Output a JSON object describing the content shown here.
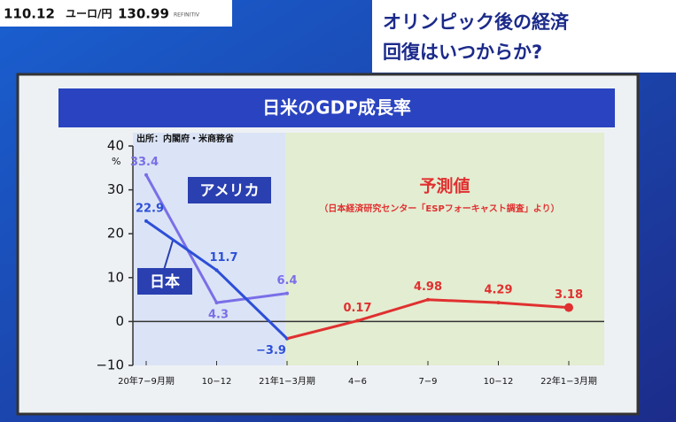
{
  "ticker": {
    "value1": "110.12",
    "pair": "ユーロ/円",
    "value2": "130.99",
    "source": "REFINITIV"
  },
  "headline": {
    "line1": "オリンピック後の経済",
    "line2": "回復はいつからか?"
  },
  "chart_data": {
    "type": "line",
    "title": "日米のGDP成長率",
    "source": "出所：内閣府・米商務省",
    "y_unit": "%",
    "categories": [
      "20年7−9月期",
      "10−12",
      "21年1−3月期",
      "4−6",
      "7−9",
      "10−12",
      "22年1−3月期"
    ],
    "series": [
      {
        "name": "アメリカ",
        "color": "#7a6fe8",
        "values": [
          33.4,
          4.3,
          6.4,
          null,
          null,
          null,
          null
        ],
        "value_labels": [
          "33.4",
          "4.3",
          "6.4",
          null,
          null,
          null,
          null
        ]
      },
      {
        "name": "日本",
        "color": "#2d4fd8",
        "values": [
          22.9,
          11.7,
          -3.9,
          null,
          null,
          null,
          null
        ],
        "value_labels": [
          "22.9",
          "11.7",
          "−3.9",
          null,
          null,
          null,
          null
        ]
      },
      {
        "name": "予測値",
        "color": "#e03030",
        "values": [
          null,
          null,
          null,
          0.17,
          4.98,
          4.29,
          3.18
        ],
        "value_labels": [
          null,
          null,
          null,
          "0.17",
          "4.98",
          "4.29",
          "3.18"
        ]
      }
    ],
    "forecast_note": "（日本経済研究センター「ESPフォーキャスト調査」より）",
    "ylim": [
      -10,
      40
    ],
    "yticks": [
      40,
      30,
      20,
      10,
      0,
      {
        "value": -10,
        "label": "−10"
      }
    ],
    "grid": false
  }
}
